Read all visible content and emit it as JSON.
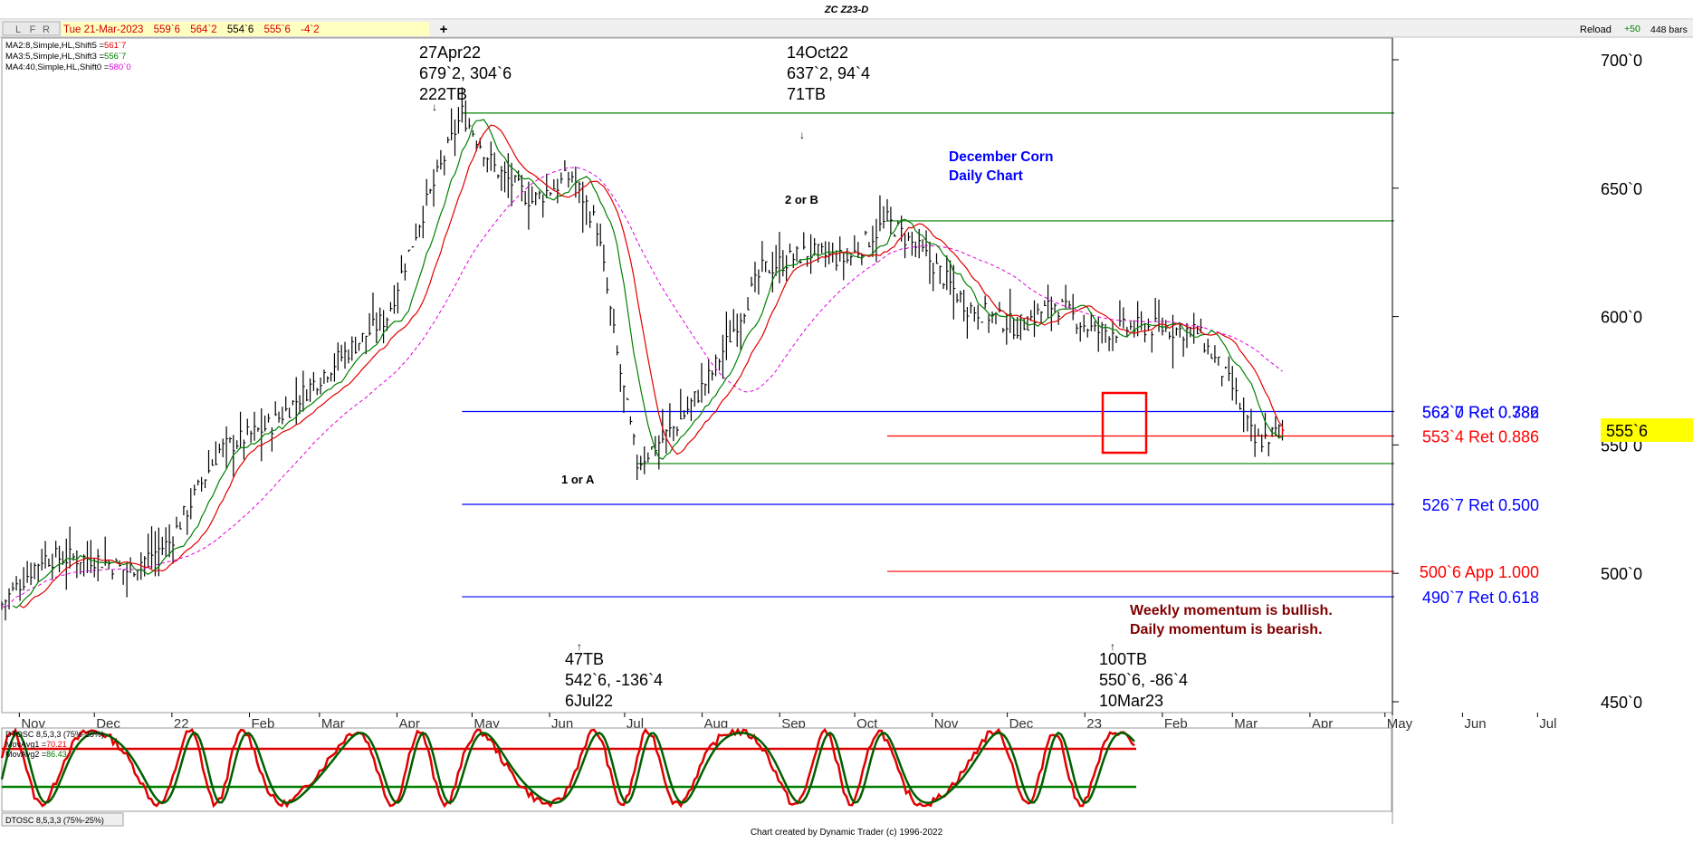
{
  "window": {
    "title": "ZC Z23-D",
    "tabs": [
      "L",
      "F",
      "R"
    ],
    "add_label": "+",
    "reload_label": "Reload",
    "reload_delta": "+50",
    "bars_label": "448 bars",
    "footer": "Chart created by Dynamic Trader  (c)  1996-2022"
  },
  "quote": {
    "date": "Tue 21-Mar-2023",
    "open": "559`6",
    "high": "564`2",
    "low": "554`6",
    "close": "555`6",
    "change": "-4`2"
  },
  "legend": [
    {
      "label": "MA2:8,Simple,HL,Shift5 =",
      "value": "561`7",
      "color": "#e00000"
    },
    {
      "label": "MA3:5,Simple,HL,Shift3 =",
      "value": "556`7",
      "color": "#008000"
    },
    {
      "label": "MA4:40,Simple,HL,Shift0 =",
      "value": "580`0",
      "color": "#e000e0"
    }
  ],
  "chart_title": [
    "December Corn",
    "Daily Chart"
  ],
  "current_price_label": "555`6",
  "annotations": {
    "high1": [
      "27Apr22",
      "679`2, 304`6",
      "222TB"
    ],
    "high2": [
      "14Oct22",
      "637`2, 94`4",
      "71TB"
    ],
    "low1": [
      "47TB",
      "542`6, -136`4",
      "6Jul22"
    ],
    "low2": [
      "100TB",
      "550`6, -86`4",
      "10Mar23"
    ],
    "wave_a": "1 or A",
    "wave_b": "2 or B",
    "momentum": [
      "Weekly momentum is bullish.",
      "Daily momentum is bearish."
    ]
  },
  "indicator": {
    "legend_title": "DTOSC 8,5,3,3 (75%-25%)",
    "ma1": {
      "label": "MovAvg1 =",
      "value": "70.21"
    },
    "ma2": {
      "label": "MovAvg2 =",
      "value": "86.43"
    },
    "tab_label": "DTOSC 8,5,3,3 (75%-25%)"
  },
  "colors": {
    "bars": "#000000",
    "ma_fast": "#e00000",
    "ma_slow": "#008000",
    "ma_long": "#e000e0",
    "retracement": "#0000ff",
    "app": "#ff0000",
    "swing": "#008000",
    "highlight": "#ffff00",
    "title": "#0000ff",
    "momentum_text": "#800000"
  },
  "chart_data": {
    "type": "line",
    "ylim": [
      450,
      700
    ],
    "y_ticks": [
      "450`0",
      "500`0",
      "550`0",
      "600`0",
      "650`0",
      "700`0"
    ],
    "x_ticks": [
      "Nov",
      "Dec",
      "22",
      "Feb",
      "Mar",
      "Apr",
      "May",
      "Jun",
      "Jul",
      "Aug",
      "Sep",
      "Oct",
      "Nov",
      "Dec",
      "23",
      "Feb",
      "Mar",
      "Apr",
      "May",
      "Jun",
      "Jul"
    ],
    "series": [
      {
        "values": [
          {
            "date": "2021-10-25",
            "price": 488
          },
          {
            "date": "2021-11-10",
            "price": 506
          },
          {
            "date": "2021-12-01",
            "price": 506
          },
          {
            "date": "2021-12-14",
            "price": 501
          },
          {
            "date": "2021-12-31",
            "price": 512
          },
          {
            "date": "2022-01-20",
            "price": 548
          },
          {
            "date": "2022-02-10",
            "price": 558
          },
          {
            "date": "2022-03-07",
            "price": 582
          },
          {
            "date": "2022-03-28",
            "price": 600
          },
          {
            "date": "2022-04-10",
            "price": 637
          },
          {
            "date": "2022-04-27",
            "price": 679.25
          },
          {
            "date": "2022-05-10",
            "price": 658
          },
          {
            "date": "2022-05-25",
            "price": 645
          },
          {
            "date": "2022-06-10",
            "price": 655
          },
          {
            "date": "2022-06-20",
            "price": 635
          },
          {
            "date": "2022-06-28",
            "price": 585
          },
          {
            "date": "2022-07-06",
            "price": 542.75
          },
          {
            "date": "2022-07-22",
            "price": 558
          },
          {
            "date": "2022-08-05",
            "price": 578
          },
          {
            "date": "2022-08-25",
            "price": 618
          },
          {
            "date": "2022-09-12",
            "price": 625
          },
          {
            "date": "2022-09-28",
            "price": 622
          },
          {
            "date": "2022-10-14",
            "price": 637.25
          },
          {
            "date": "2022-10-31",
            "price": 622
          },
          {
            "date": "2022-11-15",
            "price": 604
          },
          {
            "date": "2022-12-05",
            "price": 596
          },
          {
            "date": "2022-12-20",
            "price": 605
          },
          {
            "date": "2023-01-05",
            "price": 594
          },
          {
            "date": "2023-01-25",
            "price": 596
          },
          {
            "date": "2023-02-15",
            "price": 594
          },
          {
            "date": "2023-03-01",
            "price": 572
          },
          {
            "date": "2023-03-10",
            "price": 550.75
          },
          {
            "date": "2023-03-21",
            "price": 555.75
          }
        ]
      }
    ],
    "levels": [
      {
        "price": 563,
        "label": "563`0 Ret 0.382",
        "overlap_label": "562`7 Ret 0.786",
        "color": "#0000ff",
        "from": "2022-04-27"
      },
      {
        "price": 553.5,
        "label": "553`4 Ret 0.886",
        "color": "#ff0000",
        "from": "2022-10-14"
      },
      {
        "price": 526.875,
        "label": "526`7 Ret 0.500",
        "color": "#0000ff",
        "from": "2022-04-27"
      },
      {
        "price": 500.75,
        "label": "500`6 App 1.000",
        "color": "#ff0000",
        "from": "2022-10-14"
      },
      {
        "price": 490.875,
        "label": "490`7 Ret 0.618",
        "color": "#0000ff",
        "from": "2022-04-27"
      }
    ],
    "swing_lines": [
      {
        "price": 679.25,
        "from": "2022-04-27"
      },
      {
        "price": 637.25,
        "from": "2022-10-14"
      },
      {
        "price": 542.75,
        "from": "2022-07-06"
      }
    ],
    "oscillator": {
      "ylim": [
        0,
        100
      ],
      "bands": [
        25,
        75
      ],
      "ma1": 70.21,
      "ma2": 86.43
    }
  }
}
